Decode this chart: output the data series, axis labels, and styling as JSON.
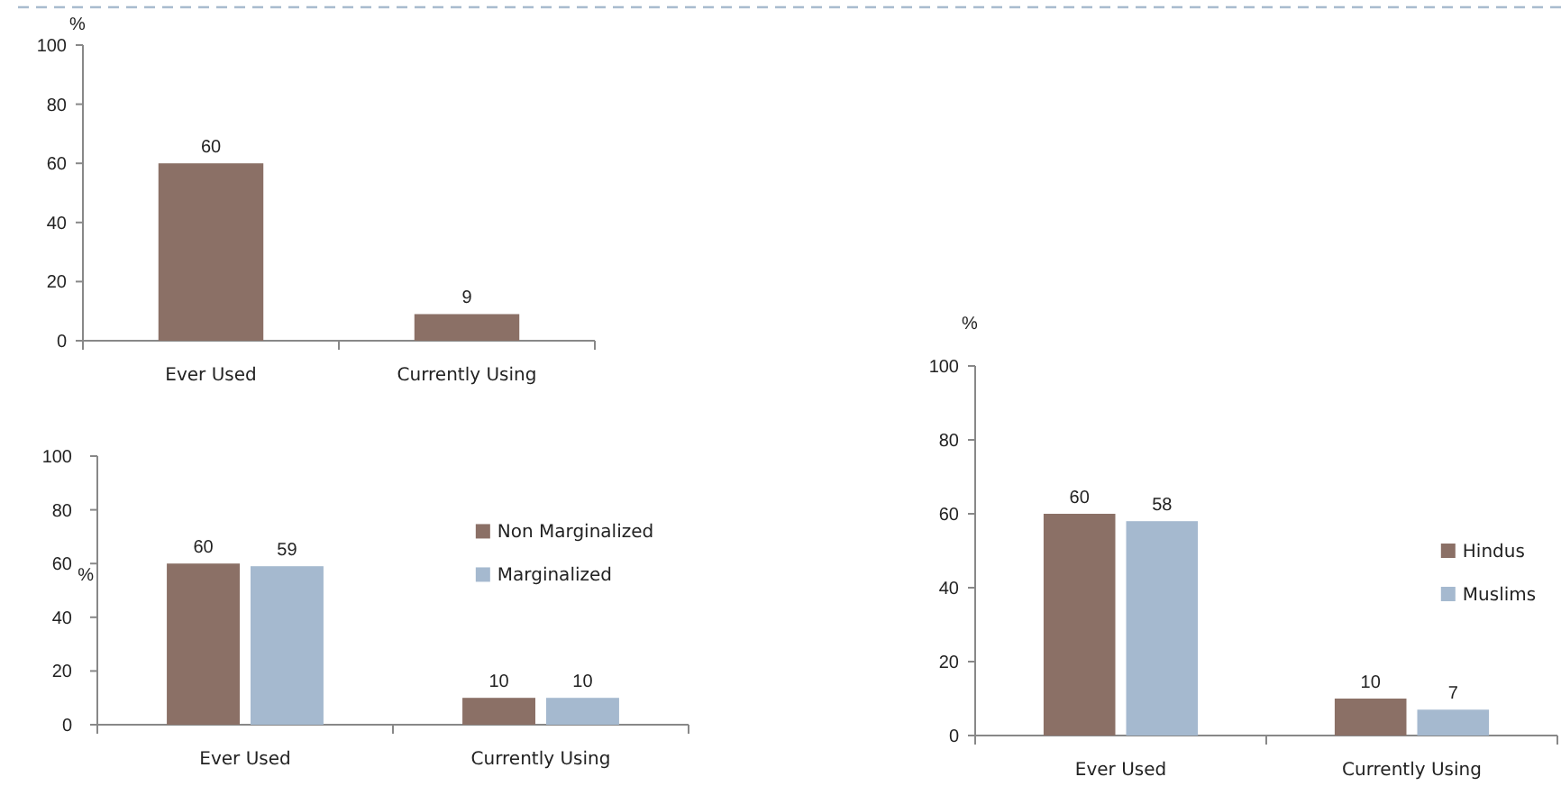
{
  "chart_data": [
    {
      "type": "bar",
      "ylabel": "%",
      "categories": [
        "Ever Used",
        "Currently Using"
      ],
      "series": [
        {
          "color": "#8b7066",
          "values": [
            60,
            9
          ]
        }
      ],
      "ylim": [
        0,
        100
      ],
      "yticks": [
        0,
        20,
        40,
        60,
        80,
        100
      ],
      "data_labels": true
    },
    {
      "type": "bar",
      "ylabel": "%",
      "categories": [
        "Ever Used",
        "Currently Using"
      ],
      "series": [
        {
          "name": "Non Marginalized",
          "color": "#8b7066",
          "values": [
            60,
            10
          ]
        },
        {
          "name": "Marginalized",
          "color": "#a5b9cf",
          "values": [
            59,
            10
          ]
        }
      ],
      "ylim": [
        0,
        100
      ],
      "yticks": [
        0,
        20,
        40,
        60,
        80,
        100
      ],
      "data_labels": true,
      "legend": "top right"
    },
    {
      "type": "bar",
      "ylabel": "%",
      "categories": [
        "Ever Used",
        "Currently Using"
      ],
      "series": [
        {
          "name": "Hindus",
          "color": "#8b7066",
          "values": [
            60,
            10
          ]
        },
        {
          "name": "Muslims",
          "color": "#a5b9cf",
          "values": [
            58,
            7
          ]
        }
      ],
      "ylim": [
        0,
        100
      ],
      "yticks": [
        0,
        20,
        40,
        60,
        80,
        100
      ],
      "data_labels": true,
      "legend": "right"
    }
  ]
}
